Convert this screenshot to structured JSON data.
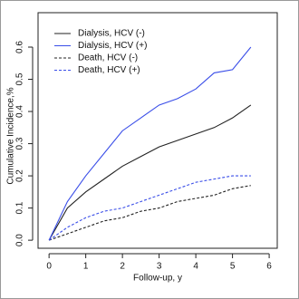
{
  "chart_data": {
    "type": "line",
    "xlabel": "Follow-up, y",
    "ylabel": "Cumulative Incidence,%",
    "x": [
      0,
      0.5,
      1,
      1.5,
      2,
      2.5,
      3,
      3.5,
      4,
      4.5,
      5,
      5.5
    ],
    "series": [
      {
        "name": "Dialysis, HCV (-)",
        "color": "#222222",
        "linestyle": "solid",
        "values": [
          0,
          0.1,
          0.15,
          0.19,
          0.23,
          0.26,
          0.29,
          0.31,
          0.33,
          0.35,
          0.38,
          0.42
        ]
      },
      {
        "name": "Dialysis, HCV (+)",
        "color": "#3a4ee8",
        "linestyle": "solid",
        "values": [
          0,
          0.12,
          0.2,
          0.27,
          0.34,
          0.38,
          0.42,
          0.44,
          0.47,
          0.52,
          0.53,
          0.6
        ]
      },
      {
        "name": "Death, HCV (-)",
        "color": "#222222",
        "linestyle": "dashed",
        "values": [
          0,
          0.02,
          0.04,
          0.06,
          0.07,
          0.09,
          0.1,
          0.12,
          0.13,
          0.14,
          0.16,
          0.17
        ]
      },
      {
        "name": "Death, HCV (+)",
        "color": "#3a4ee8",
        "linestyle": "dashed",
        "values": [
          0,
          0.04,
          0.07,
          0.09,
          0.1,
          0.12,
          0.14,
          0.16,
          0.18,
          0.19,
          0.2,
          0.2
        ]
      }
    ],
    "xlim": [
      -0.3,
      6.22
    ],
    "ylim": [
      -0.025,
      0.707
    ],
    "xticks": [
      0,
      1,
      2,
      3,
      4,
      5,
      6
    ],
    "yticks": [
      {
        "value": 0,
        "label": "0.0"
      },
      0.1,
      0.2,
      0.3,
      0.4,
      0.5,
      0.6
    ],
    "legend": "top-left"
  }
}
